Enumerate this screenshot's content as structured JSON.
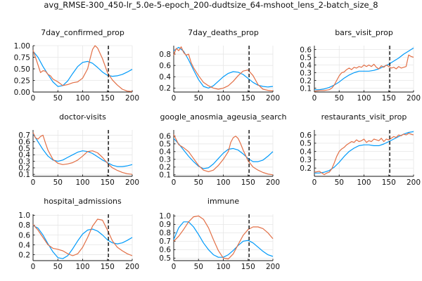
{
  "figure": {
    "title": "avg_RMSE-300_450-lr_5.0e-5-epoch_200-dudtsize_64-mshoot_lens_2-batch_size_8"
  },
  "colors": {
    "blue": "#009AFA",
    "orange": "#E26F46"
  },
  "chart_data": [
    {
      "type": "line",
      "title": "7day_confirmed_prop",
      "xlim": [
        0,
        200
      ],
      "ylim": [
        0,
        1.0
      ],
      "xticks": [
        0,
        50,
        100,
        150,
        200
      ],
      "yticks": [
        0.0,
        0.25,
        0.5,
        0.75,
        1.0
      ],
      "ytick_labels": [
        "0.00",
        "0.25",
        "0.50",
        "0.75",
        "1.00"
      ],
      "vline": 152,
      "series": [
        {
          "color": "blue",
          "x": [
            0,
            10,
            20,
            30,
            40,
            50,
            60,
            70,
            80,
            90,
            100,
            110,
            120,
            130,
            140,
            150,
            160,
            170,
            180,
            190,
            200
          ],
          "y": [
            0.88,
            0.75,
            0.55,
            0.38,
            0.22,
            0.12,
            0.14,
            0.24,
            0.4,
            0.55,
            0.64,
            0.66,
            0.62,
            0.53,
            0.43,
            0.36,
            0.34,
            0.35,
            0.38,
            0.43,
            0.49
          ]
        },
        {
          "color": "orange",
          "x": [
            0,
            8,
            15,
            20,
            25,
            30,
            35,
            40,
            50,
            60,
            70,
            80,
            90,
            100,
            110,
            115,
            120,
            125,
            130,
            140,
            150,
            160,
            170,
            180,
            190,
            200
          ],
          "y": [
            0.9,
            0.65,
            0.42,
            0.46,
            0.45,
            0.38,
            0.35,
            0.28,
            0.22,
            0.14,
            0.16,
            0.2,
            0.22,
            0.3,
            0.5,
            0.72,
            0.92,
            1.0,
            0.95,
            0.72,
            0.42,
            0.26,
            0.15,
            0.06,
            0.02,
            0.01
          ]
        }
      ]
    },
    {
      "type": "line",
      "title": "7day_deaths_prop",
      "xlim": [
        0,
        200
      ],
      "ylim": [
        0.13,
        0.95
      ],
      "xticks": [
        0,
        50,
        100,
        150,
        200
      ],
      "yticks": [
        0.2,
        0.4,
        0.6,
        0.8
      ],
      "ytick_labels": [
        "0.2",
        "0.4",
        "0.6",
        "0.8"
      ],
      "vline": 152,
      "series": [
        {
          "color": "blue",
          "x": [
            0,
            10,
            20,
            30,
            40,
            50,
            60,
            70,
            80,
            90,
            100,
            110,
            120,
            130,
            140,
            150,
            160,
            170,
            180,
            190,
            200
          ],
          "y": [
            0.86,
            0.92,
            0.85,
            0.7,
            0.52,
            0.35,
            0.23,
            0.2,
            0.24,
            0.32,
            0.4,
            0.46,
            0.49,
            0.48,
            0.44,
            0.37,
            0.3,
            0.25,
            0.23,
            0.22,
            0.23
          ]
        },
        {
          "color": "orange",
          "x": [
            0,
            5,
            10,
            15,
            20,
            25,
            30,
            35,
            40,
            50,
            60,
            70,
            80,
            90,
            100,
            110,
            120,
            130,
            140,
            150,
            160,
            170,
            180,
            190,
            200
          ],
          "y": [
            0.78,
            0.9,
            0.86,
            0.93,
            0.83,
            0.78,
            0.8,
            0.65,
            0.56,
            0.42,
            0.3,
            0.24,
            0.2,
            0.18,
            0.2,
            0.24,
            0.32,
            0.42,
            0.5,
            0.52,
            0.42,
            0.26,
            0.18,
            0.16,
            0.15
          ]
        }
      ]
    },
    {
      "type": "line",
      "title": "bars_visit_prop",
      "xlim": [
        0,
        200
      ],
      "ylim": [
        0.05,
        0.65
      ],
      "xticks": [
        0,
        50,
        100,
        150,
        200
      ],
      "yticks": [
        0.1,
        0.2,
        0.3,
        0.4,
        0.5,
        0.6
      ],
      "ytick_labels": [
        "0.1",
        "0.2",
        "0.3",
        "0.4",
        "0.5",
        "0.6"
      ],
      "vline": 152,
      "series": [
        {
          "color": "blue",
          "x": [
            0,
            10,
            20,
            30,
            40,
            50,
            60,
            70,
            80,
            90,
            100,
            110,
            120,
            130,
            140,
            150,
            160,
            170,
            180,
            190,
            200
          ],
          "y": [
            0.08,
            0.08,
            0.09,
            0.11,
            0.14,
            0.18,
            0.23,
            0.27,
            0.3,
            0.32,
            0.32,
            0.32,
            0.33,
            0.35,
            0.38,
            0.41,
            0.45,
            0.49,
            0.54,
            0.58,
            0.62
          ]
        },
        {
          "color": "orange",
          "x": [
            0,
            10,
            20,
            30,
            35,
            40,
            45,
            50,
            55,
            60,
            65,
            70,
            75,
            80,
            85,
            90,
            95,
            100,
            105,
            110,
            115,
            120,
            125,
            130,
            135,
            140,
            145,
            150,
            155,
            160,
            165,
            170,
            175,
            180,
            185,
            190,
            195,
            200
          ],
          "y": [
            0.06,
            0.07,
            0.07,
            0.08,
            0.1,
            0.14,
            0.2,
            0.26,
            0.3,
            0.31,
            0.34,
            0.36,
            0.34,
            0.37,
            0.36,
            0.38,
            0.37,
            0.4,
            0.38,
            0.4,
            0.38,
            0.41,
            0.37,
            0.35,
            0.39,
            0.37,
            0.4,
            0.38,
            0.36,
            0.37,
            0.35,
            0.38,
            0.36,
            0.37,
            0.38,
            0.53,
            0.51,
            0.5
          ]
        }
      ]
    },
    {
      "type": "line",
      "title": "doctor-visits",
      "xlim": [
        0,
        200
      ],
      "ylim": [
        0.07,
        0.78
      ],
      "xticks": [
        0,
        50,
        100,
        150,
        200
      ],
      "yticks": [
        0.1,
        0.2,
        0.3,
        0.4,
        0.5,
        0.6,
        0.7
      ],
      "ytick_labels": [
        "0.1",
        "0.2",
        "0.3",
        "0.4",
        "0.5",
        "0.6",
        "0.7"
      ],
      "vline": 152,
      "series": [
        {
          "color": "blue",
          "x": [
            0,
            10,
            20,
            30,
            40,
            50,
            60,
            70,
            80,
            90,
            100,
            110,
            120,
            130,
            140,
            150,
            160,
            170,
            180,
            190,
            200
          ],
          "y": [
            0.72,
            0.6,
            0.48,
            0.38,
            0.32,
            0.3,
            0.32,
            0.36,
            0.4,
            0.44,
            0.46,
            0.45,
            0.42,
            0.37,
            0.32,
            0.28,
            0.24,
            0.22,
            0.22,
            0.23,
            0.25
          ]
        },
        {
          "color": "orange",
          "x": [
            0,
            5,
            10,
            15,
            20,
            25,
            30,
            40,
            50,
            60,
            70,
            80,
            90,
            100,
            110,
            120,
            130,
            140,
            150,
            160,
            170,
            180,
            190,
            200
          ],
          "y": [
            0.74,
            0.66,
            0.64,
            0.68,
            0.7,
            0.58,
            0.47,
            0.33,
            0.27,
            0.25,
            0.26,
            0.28,
            0.32,
            0.38,
            0.45,
            0.46,
            0.43,
            0.36,
            0.27,
            0.2,
            0.16,
            0.13,
            0.11,
            0.1
          ]
        }
      ]
    },
    {
      "type": "line",
      "title": "google_anosmia_ageusia_search",
      "xlim": [
        0,
        200
      ],
      "ylim": [
        0.08,
        0.68
      ],
      "xticks": [
        0,
        50,
        100,
        150,
        200
      ],
      "yticks": [
        0.1,
        0.2,
        0.3,
        0.4,
        0.5,
        0.6
      ],
      "ytick_labels": [
        "0.1",
        "0.2",
        "0.3",
        "0.4",
        "0.5",
        "0.6"
      ],
      "vline": 152,
      "series": [
        {
          "color": "blue",
          "x": [
            0,
            10,
            20,
            30,
            40,
            50,
            60,
            70,
            80,
            90,
            100,
            110,
            120,
            130,
            140,
            150,
            160,
            170,
            180,
            190,
            200
          ],
          "y": [
            0.57,
            0.5,
            0.42,
            0.34,
            0.27,
            0.21,
            0.18,
            0.19,
            0.24,
            0.31,
            0.38,
            0.43,
            0.44,
            0.42,
            0.37,
            0.31,
            0.27,
            0.27,
            0.29,
            0.34,
            0.4
          ]
        },
        {
          "color": "orange",
          "x": [
            0,
            10,
            20,
            30,
            40,
            50,
            60,
            70,
            80,
            90,
            100,
            110,
            115,
            120,
            125,
            130,
            135,
            140,
            150,
            160,
            170,
            180,
            190,
            200
          ],
          "y": [
            0.62,
            0.49,
            0.45,
            0.4,
            0.31,
            0.22,
            0.16,
            0.14,
            0.16,
            0.22,
            0.3,
            0.4,
            0.52,
            0.58,
            0.6,
            0.57,
            0.5,
            0.42,
            0.28,
            0.2,
            0.16,
            0.13,
            0.11,
            0.1
          ]
        }
      ]
    },
    {
      "type": "line",
      "title": "restaurants_visit_prop",
      "xlim": [
        0,
        200
      ],
      "ylim": [
        0.1,
        0.66
      ],
      "xticks": [
        0,
        50,
        100,
        150,
        200
      ],
      "yticks": [
        0.2,
        0.3,
        0.4,
        0.5,
        0.6
      ],
      "ytick_labels": [
        "0.2",
        "0.3",
        "0.4",
        "0.5",
        "0.6"
      ],
      "vline": 152,
      "series": [
        {
          "color": "blue",
          "x": [
            0,
            10,
            20,
            30,
            40,
            50,
            60,
            70,
            80,
            90,
            100,
            110,
            120,
            130,
            140,
            150,
            160,
            170,
            180,
            190,
            200
          ],
          "y": [
            0.14,
            0.14,
            0.15,
            0.17,
            0.21,
            0.27,
            0.34,
            0.4,
            0.44,
            0.47,
            0.48,
            0.48,
            0.47,
            0.47,
            0.49,
            0.52,
            0.55,
            0.58,
            0.61,
            0.63,
            0.64
          ]
        },
        {
          "color": "orange",
          "x": [
            0,
            10,
            20,
            25,
            30,
            35,
            40,
            45,
            50,
            55,
            60,
            65,
            70,
            75,
            80,
            85,
            90,
            95,
            100,
            105,
            110,
            115,
            120,
            125,
            130,
            135,
            140,
            145,
            150,
            155,
            160,
            165,
            170,
            175,
            180,
            185,
            190,
            195,
            200
          ],
          "y": [
            0.15,
            0.16,
            0.12,
            0.14,
            0.15,
            0.19,
            0.26,
            0.34,
            0.4,
            0.43,
            0.45,
            0.48,
            0.5,
            0.52,
            0.51,
            0.54,
            0.52,
            0.53,
            0.55,
            0.51,
            0.53,
            0.52,
            0.55,
            0.54,
            0.53,
            0.56,
            0.52,
            0.55,
            0.54,
            0.56,
            0.58,
            0.57,
            0.6,
            0.59,
            0.61,
            0.6,
            0.62,
            0.61,
            0.6
          ]
        }
      ]
    },
    {
      "type": "line",
      "title": "hospital_admissions",
      "xlim": [
        0,
        200
      ],
      "ylim": [
        0.08,
        1.02
      ],
      "xticks": [
        0,
        50,
        100,
        150,
        200
      ],
      "yticks": [
        0.2,
        0.4,
        0.6,
        0.8,
        1.0
      ],
      "ytick_labels": [
        "0.2",
        "0.4",
        "0.6",
        "0.8",
        "1.0"
      ],
      "vline": 152,
      "series": [
        {
          "color": "blue",
          "x": [
            0,
            10,
            20,
            30,
            40,
            50,
            60,
            70,
            80,
            90,
            100,
            110,
            120,
            130,
            140,
            150,
            160,
            170,
            180,
            190,
            200
          ],
          "y": [
            0.79,
            0.74,
            0.6,
            0.42,
            0.26,
            0.14,
            0.12,
            0.18,
            0.32,
            0.48,
            0.62,
            0.7,
            0.72,
            0.68,
            0.6,
            0.5,
            0.44,
            0.42,
            0.44,
            0.49,
            0.55
          ]
        },
        {
          "color": "orange",
          "x": [
            0,
            10,
            20,
            30,
            40,
            50,
            60,
            70,
            80,
            90,
            100,
            110,
            120,
            130,
            140,
            150,
            160,
            170,
            180,
            190,
            200
          ],
          "y": [
            0.81,
            0.7,
            0.55,
            0.4,
            0.33,
            0.31,
            0.28,
            0.22,
            0.18,
            0.22,
            0.35,
            0.55,
            0.78,
            0.92,
            0.9,
            0.7,
            0.48,
            0.35,
            0.28,
            0.22,
            0.18
          ]
        }
      ]
    },
    {
      "type": "line",
      "title": "immune",
      "xlim": [
        0,
        200
      ],
      "ylim": [
        0.47,
        1.02
      ],
      "xticks": [
        0,
        50,
        100,
        150,
        200
      ],
      "yticks": [
        0.5,
        0.6,
        0.7,
        0.8,
        0.9,
        1.0
      ],
      "ytick_labels": [
        "0.5",
        "0.6",
        "0.7",
        "0.8",
        "0.9",
        "1.0"
      ],
      "vline": 152,
      "series": [
        {
          "color": "blue",
          "x": [
            0,
            10,
            20,
            30,
            40,
            50,
            60,
            70,
            80,
            90,
            100,
            110,
            120,
            130,
            140,
            150,
            160,
            170,
            180,
            190,
            200
          ],
          "y": [
            0.72,
            0.86,
            0.93,
            0.93,
            0.87,
            0.78,
            0.68,
            0.6,
            0.54,
            0.51,
            0.51,
            0.54,
            0.59,
            0.65,
            0.7,
            0.71,
            0.68,
            0.63,
            0.58,
            0.54,
            0.52
          ]
        },
        {
          "color": "orange",
          "x": [
            0,
            10,
            20,
            30,
            40,
            50,
            60,
            70,
            80,
            90,
            100,
            110,
            120,
            130,
            140,
            150,
            160,
            170,
            180,
            190,
            200
          ],
          "y": [
            0.7,
            0.76,
            0.84,
            0.93,
            0.99,
            1.0,
            0.96,
            0.86,
            0.72,
            0.59,
            0.5,
            0.49,
            0.55,
            0.66,
            0.77,
            0.84,
            0.87,
            0.87,
            0.85,
            0.8,
            0.73
          ]
        }
      ]
    }
  ]
}
